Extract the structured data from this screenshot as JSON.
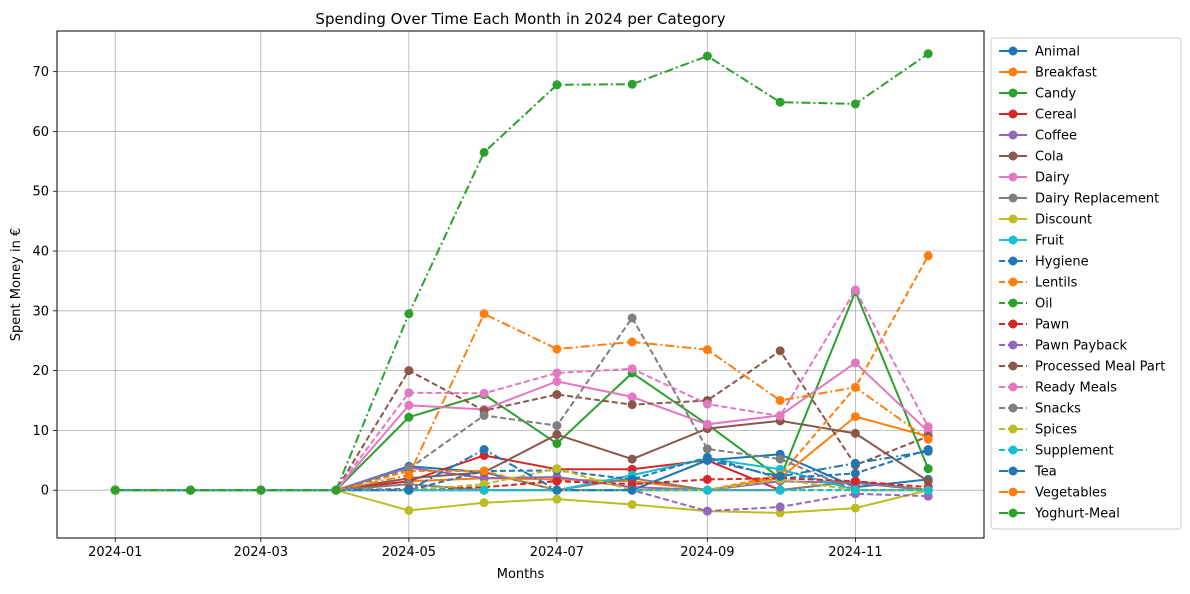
{
  "chart_data": {
    "type": "line",
    "title": "Spending Over Time Each Month in 2024 per Category",
    "xlabel": "Months",
    "ylabel": "Spent Money in €",
    "x_tick_labels": [
      "2024-01",
      "2024-03",
      "2024-05",
      "2024-07",
      "2024-09",
      "2024-11"
    ],
    "y_tick_labels": [
      "0",
      "10",
      "20",
      "30",
      "40",
      "50",
      "60",
      "70"
    ],
    "y_ticks": [
      0,
      10,
      20,
      30,
      40,
      50,
      60,
      70
    ],
    "ylim": [
      -8,
      76.8
    ],
    "grid": true,
    "legend_position": "outside-right",
    "x": [
      "2024-01-01",
      "2024-02-01",
      "2024-03-01",
      "2024-04-01",
      "2024-05-01",
      "2024-06-01",
      "2024-07-01",
      "2024-08-01",
      "2024-09-01",
      "2024-10-01",
      "2024-11-01",
      "2024-12-01"
    ],
    "xlim": [
      "2023-12-08",
      "2024-12-24"
    ],
    "series": [
      {
        "name": "Animal",
        "color": "#1f77b4",
        "dash": "solid",
        "values": [
          0,
          0,
          0,
          0,
          4.0,
          3.0,
          0,
          0,
          5.0,
          6.0,
          0.5,
          1.8
        ]
      },
      {
        "name": "Breakfast",
        "color": "#ff7f0e",
        "dash": "solid",
        "values": [
          0,
          0,
          0,
          0,
          1.5,
          2.0,
          1.8,
          1.5,
          0,
          2.0,
          12.3,
          9.0
        ]
      },
      {
        "name": "Candy",
        "color": "#2ca02c",
        "dash": "solid",
        "values": [
          0,
          0,
          0,
          0,
          12.2,
          16.0,
          7.8,
          19.6,
          11.0,
          2.0,
          33.2,
          3.6
        ]
      },
      {
        "name": "Cereal",
        "color": "#d62728",
        "dash": "solid",
        "values": [
          0,
          0,
          0,
          0,
          1.5,
          5.8,
          3.5,
          3.5,
          5.0,
          0,
          1.5,
          0
        ]
      },
      {
        "name": "Coffee",
        "color": "#9467bd",
        "dash": "solid",
        "values": [
          0,
          0,
          0,
          0,
          3.8,
          2.0,
          2.2,
          0.5,
          0,
          1.5,
          1.2,
          0
        ]
      },
      {
        "name": "Cola",
        "color": "#8c564b",
        "dash": "solid",
        "values": [
          0,
          0,
          0,
          0,
          2.0,
          3.0,
          9.3,
          5.2,
          10.3,
          11.6,
          9.5,
          1.5
        ]
      },
      {
        "name": "Dairy",
        "color": "#e377c2",
        "dash": "solid",
        "values": [
          0,
          0,
          0,
          0,
          14.2,
          13.5,
          18.2,
          15.6,
          11.0,
          12.5,
          21.3,
          9.8
        ]
      },
      {
        "name": "Dairy Replacement",
        "color": "#7f7f7f",
        "dash": "solid",
        "values": [
          0,
          0,
          0,
          0,
          1.0,
          0,
          0,
          2.0,
          0,
          0,
          1.5,
          0
        ]
      },
      {
        "name": "Discount",
        "color": "#bcbd22",
        "dash": "solid",
        "values": [
          0,
          0,
          0,
          0,
          -3.4,
          -2.1,
          -1.5,
          -2.4,
          -3.5,
          -3.8,
          -3.0,
          0
        ]
      },
      {
        "name": "Fruit",
        "color": "#17becf",
        "dash": "solid",
        "values": [
          0,
          0,
          0,
          0,
          0,
          0,
          0,
          2.5,
          5.3,
          3.5,
          0,
          0
        ]
      },
      {
        "name": "Hygiene",
        "color": "#1f77b4",
        "dash": "dashed",
        "values": [
          0,
          0,
          0,
          0,
          0,
          3.2,
          3.3,
          1.8,
          5.5,
          2.0,
          2.8,
          6.8
        ]
      },
      {
        "name": "Lentils",
        "color": "#ff7f0e",
        "dash": "dashed",
        "values": [
          0,
          0,
          0,
          0,
          3.2,
          3.2,
          0,
          0,
          0,
          2.5,
          17.2,
          39.2
        ]
      },
      {
        "name": "Oil",
        "color": "#2ca02c",
        "dash": "dashed",
        "values": [
          0,
          0,
          0,
          0,
          0,
          0,
          0,
          0,
          0,
          0,
          0,
          0
        ]
      },
      {
        "name": "Pawn",
        "color": "#d62728",
        "dash": "dashed",
        "values": [
          0,
          0,
          0,
          0,
          0.2,
          0.5,
          1.5,
          1.0,
          1.8,
          2.0,
          1.5,
          0.5
        ]
      },
      {
        "name": "Pawn Payback",
        "color": "#9467bd",
        "dash": "dashed",
        "values": [
          0,
          0,
          0,
          0,
          0,
          0,
          0,
          0,
          -3.5,
          -2.8,
          -0.6,
          -1.0
        ]
      },
      {
        "name": "Processed Meal Part",
        "color": "#8c564b",
        "dash": "dashed",
        "values": [
          0,
          0,
          0,
          0,
          20.0,
          13.3,
          16.0,
          14.3,
          15.0,
          23.3,
          4.2,
          9.0
        ]
      },
      {
        "name": "Ready Meals",
        "color": "#e377c2",
        "dash": "dashed",
        "values": [
          0,
          0,
          0,
          0,
          16.3,
          16.2,
          19.6,
          20.3,
          14.4,
          12.4,
          33.5,
          10.6
        ]
      },
      {
        "name": "Snacks",
        "color": "#7f7f7f",
        "dash": "dashed",
        "values": [
          0,
          0,
          0,
          0,
          3.6,
          12.5,
          10.8,
          28.8,
          6.9,
          5.2,
          0,
          0
        ]
      },
      {
        "name": "Spices",
        "color": "#bcbd22",
        "dash": "dashed",
        "values": [
          0,
          0,
          0,
          0,
          0,
          1.0,
          3.6,
          0,
          0,
          1.8,
          0,
          0
        ]
      },
      {
        "name": "Supplement",
        "color": "#17becf",
        "dash": "dashed",
        "values": [
          0,
          0,
          0,
          0,
          0,
          0,
          0,
          0,
          0,
          0,
          0,
          0
        ]
      },
      {
        "name": "Tea",
        "color": "#1f77b4",
        "dash": "dashdot",
        "values": [
          0,
          0,
          0,
          0,
          0,
          6.8,
          0,
          0,
          5.0,
          2.3,
          4.5,
          6.5
        ]
      },
      {
        "name": "Vegetables",
        "color": "#ff7f0e",
        "dash": "dashdot",
        "values": [
          0,
          0,
          0,
          0,
          2.5,
          29.5,
          23.6,
          24.8,
          23.5,
          15.0,
          17.2,
          8.5
        ]
      },
      {
        "name": "Yoghurt-Meal",
        "color": "#2ca02c",
        "dash": "dashdot",
        "values": [
          0,
          0,
          0,
          0,
          29.5,
          56.5,
          67.8,
          67.9,
          72.6,
          64.9,
          64.6,
          73.0
        ]
      }
    ]
  }
}
